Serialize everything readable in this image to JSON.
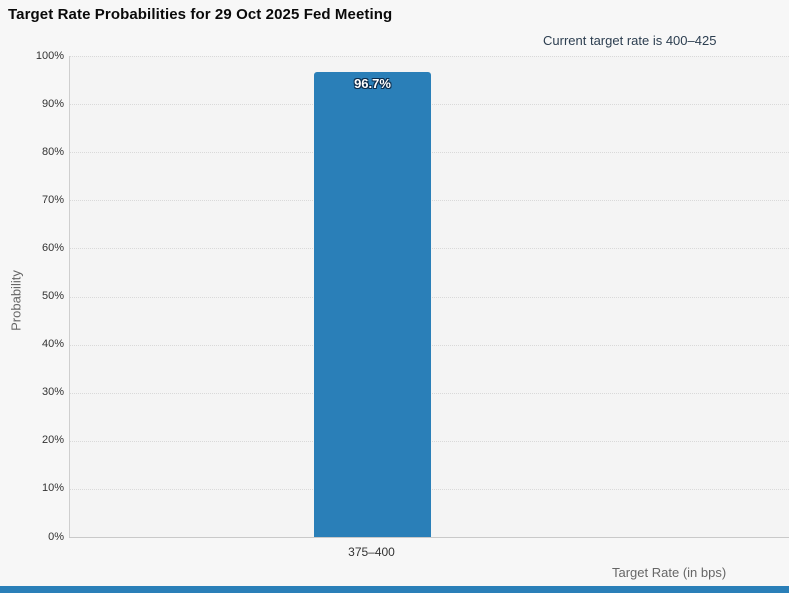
{
  "page": {
    "title": "Target Rate Probabilities for 29 Oct 2025 Fed Meeting",
    "note": "Current target rate is 400–425"
  },
  "chart_data": {
    "type": "bar",
    "title": "Target Rate Probabilities for 29 Oct 2025 Fed Meeting",
    "subtitle": "Current target rate is 400–425",
    "categories": [
      "375–400"
    ],
    "values": [
      96.7
    ],
    "data_labels": [
      "96.7%"
    ],
    "xlabel": "Target Rate (in bps)",
    "ylabel": "Probability",
    "ylim": [
      0,
      100
    ],
    "ytick_step": 10,
    "ytick_suffix": "%",
    "grid": "horizontal-dotted",
    "legend": "none",
    "bar_color": "#2a7fb8"
  },
  "colors": {
    "background": "#f7f7f7",
    "plot_background": "#f4f4f4",
    "axis_line": "#cfcfcf",
    "gridline": "#d9d9d9",
    "title_text": "#0a0a0a",
    "note_text": "#2c3e50",
    "tick_text": "#333333",
    "axis_title_text": "#666666",
    "bar": "#2a7fb8",
    "bar_label_text": "#ffffff",
    "footer_strip": "#2a7fb8"
  }
}
